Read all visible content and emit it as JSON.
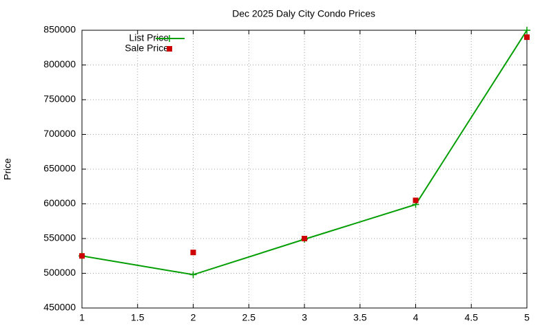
{
  "chart_data": {
    "type": "line",
    "title": "Dec 2025 Daly City Condo Prices",
    "y_label": "Price",
    "x": [
      1,
      2,
      3,
      4,
      5
    ],
    "series": [
      {
        "name": "List Price",
        "color": "#009e00",
        "style": "linespoints",
        "values": [
          525000,
          498000,
          549000,
          599000,
          850000
        ]
      },
      {
        "name": "Sale Price",
        "color": "#cc0000",
        "style": "points",
        "values": [
          525000,
          530000,
          550000,
          605000,
          840000
        ]
      }
    ],
    "xlim": [
      1,
      5
    ],
    "xticks": [
      1,
      1.5,
      2,
      2.5,
      3,
      3.5,
      4,
      4.5,
      5
    ],
    "ylim": [
      450000,
      850000
    ],
    "yticks": [
      450000,
      500000,
      550000,
      600000,
      650000,
      700000,
      750000,
      800000,
      850000
    ],
    "grid": true,
    "legend": "top-left"
  }
}
